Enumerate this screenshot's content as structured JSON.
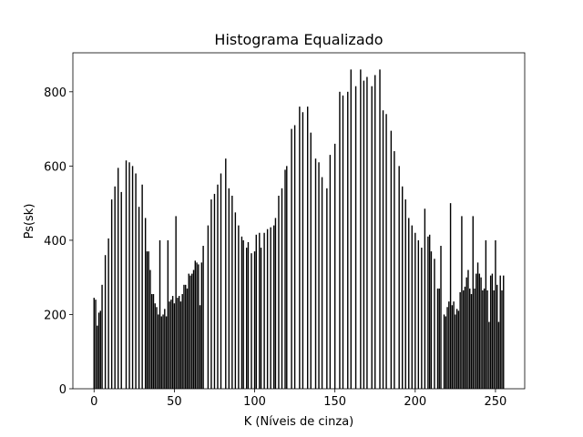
{
  "chart_data": {
    "type": "bar",
    "title": "Histograma Equalizado",
    "xlabel": "K (Níveis de cinza)",
    "ylabel": "Ps(sk)",
    "color": "#000000",
    "bar_width": 0.8,
    "xlim": [
      -13.19,
      268.19
    ],
    "xticks": [
      0,
      50,
      100,
      150,
      200,
      250
    ],
    "ylim": [
      0,
      905
    ],
    "yticks": [
      0,
      200,
      400,
      600,
      800
    ],
    "grid": false,
    "values": [
      245,
      240,
      170,
      205,
      210,
      280,
      0,
      360,
      0,
      405,
      0,
      510,
      0,
      545,
      0,
      595,
      0,
      530,
      0,
      0,
      615,
      0,
      610,
      0,
      600,
      0,
      580,
      0,
      490,
      0,
      550,
      0,
      460,
      370,
      370,
      320,
      255,
      255,
      230,
      220,
      200,
      400,
      195,
      200,
      215,
      195,
      400,
      235,
      240,
      250,
      230,
      465,
      245,
      250,
      235,
      255,
      280,
      280,
      270,
      310,
      305,
      310,
      320,
      345,
      340,
      335,
      225,
      340,
      385,
      0,
      0,
      440,
      0,
      510,
      0,
      525,
      0,
      550,
      0,
      580,
      0,
      0,
      620,
      0,
      540,
      0,
      520,
      0,
      475,
      0,
      440,
      0,
      410,
      400,
      0,
      380,
      395,
      0,
      365,
      0,
      370,
      415,
      0,
      420,
      380,
      0,
      420,
      0,
      430,
      0,
      435,
      0,
      440,
      460,
      0,
      520,
      0,
      540,
      0,
      590,
      600,
      0,
      0,
      700,
      0,
      710,
      0,
      0,
      760,
      0,
      745,
      0,
      0,
      760,
      0,
      690,
      0,
      0,
      620,
      0,
      610,
      0,
      570,
      0,
      0,
      540,
      0,
      630,
      0,
      0,
      660,
      0,
      0,
      800,
      0,
      790,
      0,
      0,
      800,
      0,
      860,
      0,
      0,
      815,
      0,
      0,
      860,
      0,
      830,
      0,
      840,
      0,
      0,
      815,
      0,
      845,
      0,
      0,
      860,
      0,
      750,
      0,
      740,
      0,
      0,
      695,
      0,
      640,
      0,
      0,
      600,
      0,
      545,
      0,
      510,
      0,
      460,
      0,
      440,
      0,
      420,
      0,
      400,
      0,
      380,
      0,
      485,
      0,
      410,
      415,
      370,
      0,
      350,
      0,
      270,
      270,
      385,
      0,
      200,
      195,
      220,
      235,
      500,
      225,
      235,
      200,
      215,
      210,
      260,
      465,
      265,
      275,
      300,
      320,
      270,
      255,
      465,
      270,
      310,
      340,
      310,
      300,
      265,
      270,
      400,
      265,
      180,
      305,
      310,
      265,
      400,
      280,
      180,
      305,
      265,
      305
    ]
  }
}
